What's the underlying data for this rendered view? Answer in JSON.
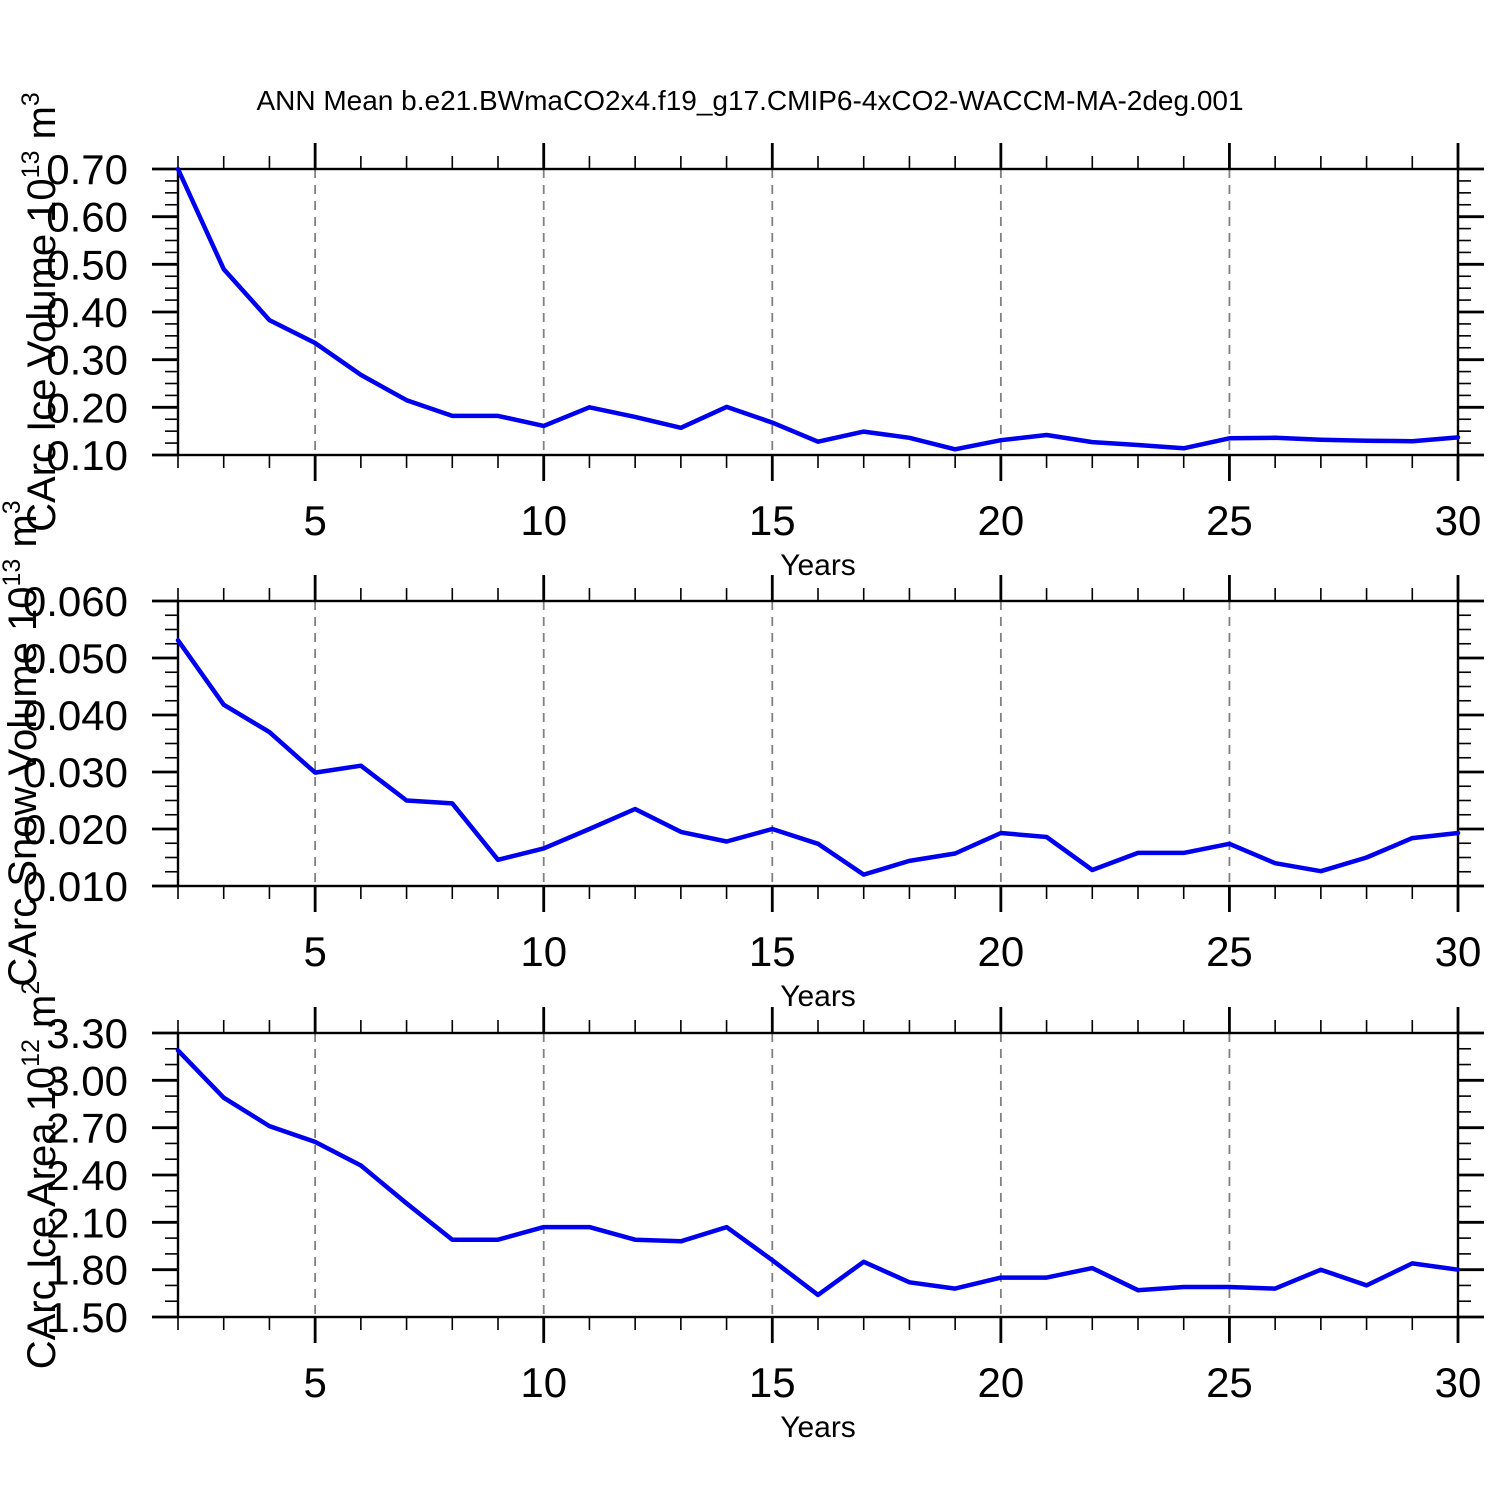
{
  "title": "ANN Mean b.e21.BWmaCO2x4.f19_g17.CMIP6-4xCO2-WACCM-MA-2deg.001",
  "colors": {
    "line": "#0000EE",
    "grid": "#808080",
    "axis": "#000000",
    "background": "#ffffff"
  },
  "x_axis": {
    "label": "Years",
    "min": 2,
    "max": 30,
    "minor_step": 1,
    "major_ticks": [
      5,
      10,
      15,
      20,
      25,
      30
    ],
    "major_tick_labels": [
      "5",
      "10",
      "15",
      "20",
      "25",
      "30"
    ],
    "gridlines_at": [
      5,
      10,
      15,
      20,
      25
    ]
  },
  "years": [
    2,
    3,
    4,
    5,
    6,
    7,
    8,
    9,
    10,
    11,
    12,
    13,
    14,
    15,
    16,
    17,
    18,
    19,
    20,
    21,
    22,
    23,
    24,
    25,
    26,
    27,
    28,
    29,
    30
  ],
  "chart_data": [
    {
      "type": "line",
      "id": "ice-volume",
      "ylabel": "CArc Ice Volume 10^13 m^3",
      "ylabel_parts": {
        "prefix": "CArc Ice Volume 10",
        "exponent": "13",
        "unit": " m",
        "unit_exponent": "3"
      },
      "xlabel": "Years",
      "ylim": [
        0.1,
        0.7
      ],
      "yticks": [
        {
          "value": 0.7,
          "label": "0.70"
        },
        {
          "value": 0.6,
          "label": "0.60"
        },
        {
          "value": 0.5,
          "label": "0.50"
        },
        {
          "value": 0.4,
          "label": "0.40"
        },
        {
          "value": 0.3,
          "label": "0.30"
        },
        {
          "value": 0.2,
          "label": "0.20"
        },
        {
          "value": 0.1,
          "label": "0.10"
        }
      ],
      "yminor_step": 0.025,
      "x": [
        2,
        3,
        4,
        5,
        6,
        7,
        8,
        9,
        10,
        11,
        12,
        13,
        14,
        15,
        16,
        17,
        18,
        19,
        20,
        21,
        22,
        23,
        24,
        25,
        26,
        27,
        28,
        29,
        30
      ],
      "values": [
        0.7,
        0.49,
        0.383,
        0.335,
        0.268,
        0.215,
        0.182,
        0.182,
        0.161,
        0.2,
        0.18,
        0.157,
        0.201,
        0.168,
        0.128,
        0.149,
        0.136,
        0.112,
        0.131,
        0.142,
        0.127,
        0.121,
        0.114,
        0.135,
        0.136,
        0.132,
        0.13,
        0.129,
        0.137
      ]
    },
    {
      "type": "line",
      "id": "snow-volume",
      "ylabel": "CArc Snow Volume 10^13 m^3",
      "ylabel_parts": {
        "prefix": "CArc Snow Volume 10",
        "exponent": "13",
        "unit": " m",
        "unit_exponent": "3"
      },
      "xlabel": "Years",
      "ylim": [
        0.01,
        0.06
      ],
      "yticks": [
        {
          "value": 0.06,
          "label": "0.060"
        },
        {
          "value": 0.05,
          "label": "0.050"
        },
        {
          "value": 0.04,
          "label": "0.040"
        },
        {
          "value": 0.03,
          "label": "0.030"
        },
        {
          "value": 0.02,
          "label": "0.020"
        },
        {
          "value": 0.01,
          "label": "0.010"
        }
      ],
      "yminor_step": 0.0025,
      "x": [
        2,
        3,
        4,
        5,
        6,
        7,
        8,
        9,
        10,
        11,
        12,
        13,
        14,
        15,
        16,
        17,
        18,
        19,
        20,
        21,
        22,
        23,
        24,
        25,
        26,
        27,
        28,
        29,
        30
      ],
      "values": [
        0.0531,
        0.0418,
        0.037,
        0.0299,
        0.0311,
        0.025,
        0.0245,
        0.0146,
        0.0166,
        0.02,
        0.0235,
        0.0195,
        0.0178,
        0.02,
        0.0174,
        0.012,
        0.0144,
        0.0157,
        0.0193,
        0.0186,
        0.0128,
        0.0158,
        0.0158,
        0.0174,
        0.014,
        0.0126,
        0.015,
        0.0184,
        0.0193
      ]
    },
    {
      "type": "line",
      "id": "ice-area",
      "ylabel": "CArc Ice Area 10^12 m^2",
      "ylabel_parts": {
        "prefix": "CArc Ice Area 10",
        "exponent": "12",
        "unit": " m",
        "unit_exponent": "2"
      },
      "xlabel": "Years",
      "ylim": [
        1.5,
        3.3
      ],
      "yticks": [
        {
          "value": 3.3,
          "label": "3.30"
        },
        {
          "value": 3.0,
          "label": "3.00"
        },
        {
          "value": 2.7,
          "label": "2.70"
        },
        {
          "value": 2.4,
          "label": "2.40"
        },
        {
          "value": 2.1,
          "label": "2.10"
        },
        {
          "value": 1.8,
          "label": "1.80"
        },
        {
          "value": 1.5,
          "label": "1.50"
        }
      ],
      "yminor_step": 0.1,
      "x": [
        2,
        3,
        4,
        5,
        6,
        7,
        8,
        9,
        10,
        11,
        12,
        13,
        14,
        15,
        16,
        17,
        18,
        19,
        20,
        21,
        22,
        23,
        24,
        25,
        26,
        27,
        28,
        29,
        30
      ],
      "values": [
        3.19,
        2.89,
        2.71,
        2.61,
        2.46,
        2.22,
        1.99,
        1.99,
        2.07,
        2.07,
        1.99,
        1.98,
        2.07,
        1.86,
        1.64,
        1.85,
        1.72,
        1.68,
        1.75,
        1.75,
        1.81,
        1.67,
        1.69,
        1.69,
        1.68,
        1.8,
        1.7,
        1.84,
        1.8
      ]
    }
  ]
}
